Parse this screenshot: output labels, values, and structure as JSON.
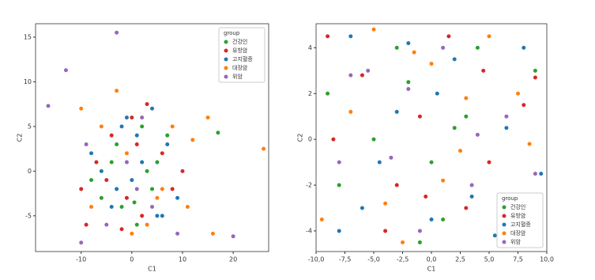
{
  "chart_data": [
    {
      "type": "scatter",
      "x_label": "C1",
      "y_label": "C2",
      "legend_title": "group",
      "legend": "upper right",
      "xlim": [
        -19,
        27
      ],
      "ylim": [
        -9,
        16.5
      ],
      "xticks": [
        -10,
        0,
        10,
        20
      ],
      "yticks": [
        -5,
        0,
        5,
        10,
        15
      ],
      "series": [
        {
          "name": "건강인",
          "color": "#2ca02c",
          "x": [
            -3,
            0,
            2,
            -6,
            5,
            1,
            -1,
            4,
            -8,
            7,
            -2,
            3,
            17,
            -4,
            0.5
          ],
          "values": [
            3,
            -1,
            5,
            -3,
            1,
            -6,
            2,
            -2,
            -1,
            4,
            -4,
            0,
            4.3,
            1,
            -3.5
          ]
        },
        {
          "name": "유방암",
          "color": "#d62728",
          "x": [
            -9,
            -4,
            2,
            6,
            -1,
            3,
            -7,
            8,
            -2,
            10,
            1,
            -5,
            4,
            -10,
            0
          ],
          "values": [
            -6,
            4,
            -5,
            2,
            -3,
            7.5,
            1,
            -2,
            -6.5,
            0,
            3,
            -1,
            -4,
            -2,
            6
          ]
        },
        {
          "name": "고지혈증",
          "color": "#1f77b4",
          "x": [
            -3,
            1,
            5,
            -6,
            2,
            -1,
            7,
            -4,
            0,
            3,
            -8,
            9,
            -2,
            6,
            4
          ],
          "values": [
            -2,
            4,
            -5,
            0,
            1,
            6,
            3,
            -4,
            -1,
            -6,
            2,
            -3,
            5,
            -5,
            7
          ]
        },
        {
          "name": "대장암",
          "color": "#ff7f0e",
          "x": [
            -10,
            -6,
            3,
            8,
            26,
            16,
            12,
            11,
            -3,
            0,
            -8,
            5,
            15,
            -1,
            6
          ],
          "values": [
            7,
            5,
            -6,
            5,
            2.5,
            -7,
            3.5,
            -4,
            9,
            -7,
            -4,
            -3,
            6,
            2,
            -2
          ]
        },
        {
          "name": "위암",
          "color": "#9467bd",
          "x": [
            -3,
            -13,
            -16.5,
            20,
            -10,
            -5,
            2,
            9,
            -1,
            4,
            -9,
            1
          ],
          "values": [
            15.5,
            11.3,
            7.3,
            -7.3,
            -8,
            -6,
            6,
            -7,
            1,
            -4,
            3,
            -2
          ]
        }
      ]
    },
    {
      "type": "scatter",
      "x_label": "C1",
      "y_label": "C2",
      "legend_title": "group",
      "legend": "lower right",
      "xlim": [
        -10,
        10
      ],
      "ylim": [
        -4.9,
        5.05
      ],
      "xticks": [
        {
          "value": -10,
          "label": "-10,0"
        },
        {
          "value": -7.5,
          "label": "-7,5"
        },
        {
          "value": -5,
          "label": "-5,0"
        },
        {
          "value": -2.5,
          "label": "-2,5"
        },
        {
          "value": 0,
          "label": "0,0"
        },
        {
          "value": 2.5,
          "label": "2,5"
        },
        {
          "value": 5,
          "label": "5,0"
        },
        {
          "value": 7.5,
          "label": "7,5"
        },
        {
          "value": 10,
          "label": "10,0"
        }
      ],
      "yticks": [
        -4,
        -2,
        0,
        2,
        4
      ],
      "series": [
        {
          "name": "건강인",
          "color": "#2ca02c",
          "x": [
            -9,
            -6,
            -3,
            0,
            3,
            6,
            9,
            -8,
            -5,
            -2,
            1,
            4,
            7,
            -1,
            2
          ],
          "values": [
            2,
            -3,
            4,
            -1,
            1,
            -4,
            3,
            -2,
            0,
            2.5,
            -3.5,
            4,
            -2.5,
            -4.5,
            0.5
          ]
        },
        {
          "name": "유방암",
          "color": "#d62728",
          "x": [
            -8.5,
            -6,
            -3,
            1.5,
            5,
            8,
            -4,
            -1,
            3,
            7,
            -9,
            -0.5,
            4.5,
            9
          ],
          "values": [
            0,
            2.8,
            -2,
            4.5,
            -1,
            1.5,
            -4,
            1,
            -3,
            -3.8,
            4.5,
            -2.5,
            3,
            2.7
          ]
        },
        {
          "name": "고지혈증",
          "color": "#1f77b4",
          "x": [
            -7,
            -4.5,
            -2,
            0.5,
            3.5,
            6.5,
            9.5,
            -8,
            -3,
            2,
            5.5,
            -6,
            0,
            8
          ],
          "values": [
            4.5,
            -1,
            4.2,
            2,
            -2.5,
            0.5,
            -1.5,
            -4,
            1.2,
            3.5,
            -4.2,
            -3,
            -3.5,
            4
          ]
        },
        {
          "name": "대장암",
          "color": "#ff7f0e",
          "x": [
            -9.5,
            -7,
            -5,
            -2.5,
            0,
            2.5,
            5,
            7.5,
            -4,
            1,
            6,
            8.5,
            -1.5,
            3
          ],
          "values": [
            -3.5,
            1.2,
            4.8,
            -4.5,
            3.3,
            -0.5,
            4.5,
            2,
            -2.8,
            -1.8,
            -4.5,
            -0.2,
            3.8,
            1.8
          ]
        },
        {
          "name": "위암",
          "color": "#9467bd",
          "x": [
            -8,
            -5.5,
            -3.5,
            -1,
            1,
            3.5,
            6.5,
            9,
            -7,
            4,
            -2,
            8
          ],
          "values": [
            -1,
            3,
            -0.8,
            -4,
            4,
            -2,
            1,
            -1.5,
            2.8,
            0.2,
            2.2,
            -3.2
          ]
        }
      ]
    }
  ]
}
